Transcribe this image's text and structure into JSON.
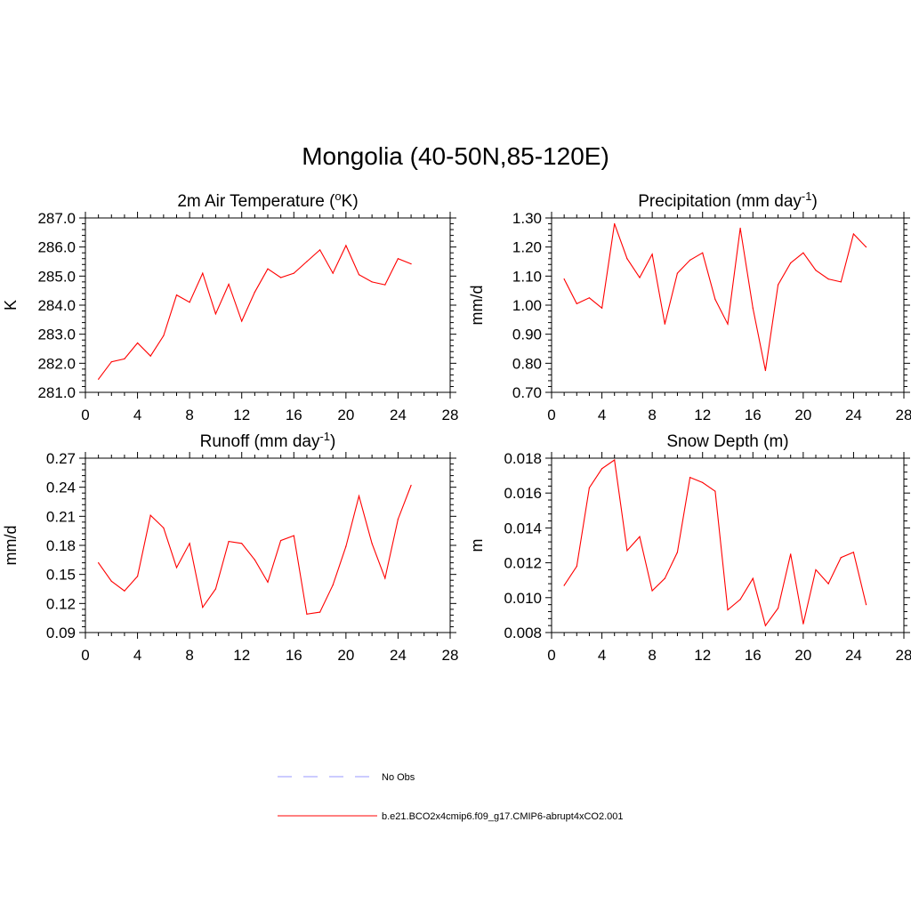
{
  "figure_title": "Mongolia (40-50N,85-120E)",
  "legend": {
    "entries": [
      {
        "label": "No Obs",
        "color": "#9999ff",
        "style": "dashed"
      },
      {
        "label": "b.e21.BCO2x4cmip6.f09_g17.CMIP6-abrupt4xCO2.001",
        "color": "#ff0000",
        "style": "solid"
      }
    ]
  },
  "chart_data": [
    {
      "type": "line",
      "title": "2m Air Temperature (",
      "title_sup": "o",
      "title_suffix": "K)",
      "ylabel": "K",
      "xlabel": "",
      "xlim": [
        0,
        28
      ],
      "ylim": [
        281.0,
        287.0
      ],
      "xticks": [
        0,
        4,
        8,
        12,
        16,
        20,
        24,
        28
      ],
      "xtick_labels": [
        "0",
        "4",
        "8",
        "12",
        "16",
        "20",
        "24",
        "28"
      ],
      "yticks": [
        281.0,
        282.0,
        283.0,
        284.0,
        285.0,
        286.0,
        287.0
      ],
      "ytick_labels": [
        "281.0",
        "282.0",
        "283.0",
        "284.0",
        "285.0",
        "286.0",
        "287.0"
      ],
      "series": [
        {
          "name": "b.e21.BCO2x4cmip6.f09_g17.CMIP6-abrupt4xCO2.001",
          "color": "#ff0000",
          "x": [
            1,
            2,
            3,
            4,
            5,
            6,
            7,
            8,
            9,
            10,
            11,
            12,
            13,
            14,
            15,
            16,
            17,
            18,
            19,
            20,
            21,
            22,
            23,
            24,
            25
          ],
          "y": [
            281.45,
            282.05,
            282.15,
            282.7,
            282.25,
            282.95,
            284.35,
            284.1,
            285.1,
            283.7,
            284.72,
            283.45,
            284.45,
            285.25,
            284.95,
            285.1,
            285.5,
            285.9,
            285.1,
            286.05,
            285.05,
            284.8,
            284.7,
            285.6,
            285.42
          ]
        }
      ]
    },
    {
      "type": "line",
      "title": "Precipitation (mm day",
      "title_sup": "-1",
      "title_suffix": ")",
      "ylabel": "mm/d",
      "xlabel": "",
      "xlim": [
        0,
        28
      ],
      "ylim": [
        0.7,
        1.3
      ],
      "xticks": [
        0,
        4,
        8,
        12,
        16,
        20,
        24,
        28
      ],
      "xtick_labels": [
        "0",
        "4",
        "8",
        "12",
        "16",
        "20",
        "24",
        "28"
      ],
      "yticks": [
        0.7,
        0.8,
        0.9,
        1.0,
        1.1,
        1.2,
        1.3
      ],
      "ytick_labels": [
        "0.70",
        "0.80",
        "0.90",
        "1.00",
        "1.10",
        "1.20",
        "1.30"
      ],
      "series": [
        {
          "name": "b.e21.BCO2x4cmip6.f09_g17.CMIP6-abrupt4xCO2.001",
          "color": "#ff0000",
          "x": [
            1,
            2,
            3,
            4,
            5,
            6,
            7,
            8,
            9,
            10,
            11,
            12,
            13,
            14,
            15,
            16,
            17,
            18,
            19,
            20,
            21,
            22,
            23,
            24,
            25
          ],
          "y": [
            1.09,
            1.005,
            1.025,
            0.99,
            1.28,
            1.16,
            1.095,
            1.175,
            0.935,
            1.11,
            1.155,
            1.18,
            1.02,
            0.935,
            1.265,
            0.99,
            0.775,
            1.07,
            1.145,
            1.18,
            1.12,
            1.09,
            1.08,
            1.245,
            1.2
          ]
        }
      ]
    },
    {
      "type": "line",
      "title": "Runoff (mm day",
      "title_sup": "-1",
      "title_suffix": ")",
      "ylabel": "mm/d",
      "xlabel": "",
      "xlim": [
        0,
        28
      ],
      "ylim": [
        0.09,
        0.27
      ],
      "xticks": [
        0,
        4,
        8,
        12,
        16,
        20,
        24,
        28
      ],
      "xtick_labels": [
        "0",
        "4",
        "8",
        "12",
        "16",
        "20",
        "24",
        "28"
      ],
      "yticks": [
        0.09,
        0.12,
        0.15,
        0.18,
        0.21,
        0.24,
        0.27
      ],
      "ytick_labels": [
        "0.09",
        "0.12",
        "0.15",
        "0.18",
        "0.21",
        "0.24",
        "0.27"
      ],
      "series": [
        {
          "name": "b.e21.BCO2x4cmip6.f09_g17.CMIP6-abrupt4xCO2.001",
          "color": "#ff0000",
          "x": [
            1,
            2,
            3,
            4,
            5,
            6,
            7,
            8,
            9,
            10,
            11,
            12,
            13,
            14,
            15,
            16,
            17,
            18,
            19,
            20,
            21,
            22,
            23,
            24,
            25
          ],
          "y": [
            0.162,
            0.143,
            0.133,
            0.148,
            0.211,
            0.198,
            0.157,
            0.182,
            0.116,
            0.135,
            0.184,
            0.182,
            0.165,
            0.142,
            0.185,
            0.19,
            0.109,
            0.111,
            0.139,
            0.179,
            0.231,
            0.182,
            0.146,
            0.207,
            0.242
          ]
        }
      ]
    },
    {
      "type": "line",
      "title": "Snow Depth (m)",
      "title_sup": "",
      "title_suffix": "",
      "ylabel": "m",
      "xlabel": "",
      "xlim": [
        0,
        28
      ],
      "ylim": [
        0.008,
        0.018
      ],
      "xticks": [
        0,
        4,
        8,
        12,
        16,
        20,
        24,
        28
      ],
      "xtick_labels": [
        "0",
        "4",
        "8",
        "12",
        "16",
        "20",
        "24",
        "28"
      ],
      "yticks": [
        0.008,
        0.01,
        0.012,
        0.014,
        0.016,
        0.018
      ],
      "ytick_labels": [
        "0.008",
        "0.010",
        "0.012",
        "0.014",
        "0.016",
        "0.018"
      ],
      "series": [
        {
          "name": "b.e21.BCO2x4cmip6.f09_g17.CMIP6-abrupt4xCO2.001",
          "color": "#ff0000",
          "x": [
            1,
            2,
            3,
            4,
            5,
            6,
            7,
            8,
            9,
            10,
            11,
            12,
            13,
            14,
            15,
            16,
            17,
            18,
            19,
            20,
            21,
            22,
            23,
            24,
            25
          ],
          "y": [
            0.0107,
            0.0118,
            0.0163,
            0.0174,
            0.0179,
            0.0127,
            0.0135,
            0.0104,
            0.0111,
            0.0126,
            0.0169,
            0.0166,
            0.0161,
            0.0093,
            0.0099,
            0.0111,
            0.0084,
            0.0094,
            0.0125,
            0.0085,
            0.0116,
            0.0108,
            0.0123,
            0.0126,
            0.0096
          ]
        }
      ]
    }
  ]
}
